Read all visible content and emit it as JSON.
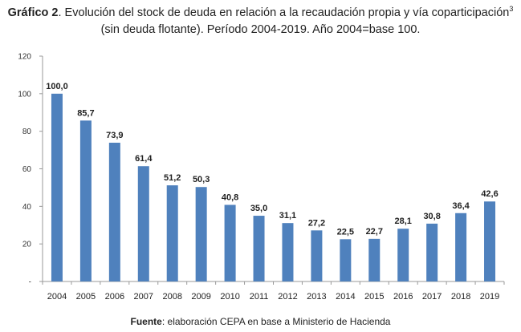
{
  "title": {
    "bold": "Gráfico 2",
    "line1": ". Evolución del stock de deuda en relación a la recaudación propia y vía coparticipación",
    "footnote": "3",
    "line2": "(sin deuda flotante). Período 2004-2019. Año 2004=base 100."
  },
  "source": {
    "bold": "Fuente",
    "text": ": elaboración CEPA en base a Ministerio de Hacienda"
  },
  "chart_data": {
    "type": "bar",
    "categories": [
      "2004",
      "2005",
      "2006",
      "2007",
      "2008",
      "2009",
      "2010",
      "2011",
      "2012",
      "2013",
      "2014",
      "2015",
      "2016",
      "2017",
      "2018",
      "2019"
    ],
    "values": [
      100.0,
      85.7,
      73.9,
      61.4,
      51.2,
      50.3,
      40.8,
      35.0,
      31.1,
      27.2,
      22.5,
      22.7,
      28.1,
      30.8,
      36.4,
      42.6
    ],
    "value_labels": [
      "100,0",
      "85,7",
      "73,9",
      "61,4",
      "51,2",
      "50,3",
      "40,8",
      "35,0",
      "31,1",
      "27,2",
      "22,5",
      "22,7",
      "28,1",
      "30,8",
      "36,4",
      "42,6"
    ],
    "yticks": [
      0,
      20,
      40,
      60,
      80,
      100,
      120
    ],
    "ytick_labels": [
      "-",
      "20",
      "40",
      "60",
      "80",
      "100",
      "120"
    ],
    "ylim": [
      0,
      120
    ],
    "bar_color": "#4f81bd",
    "grid": false,
    "legend": "none"
  }
}
